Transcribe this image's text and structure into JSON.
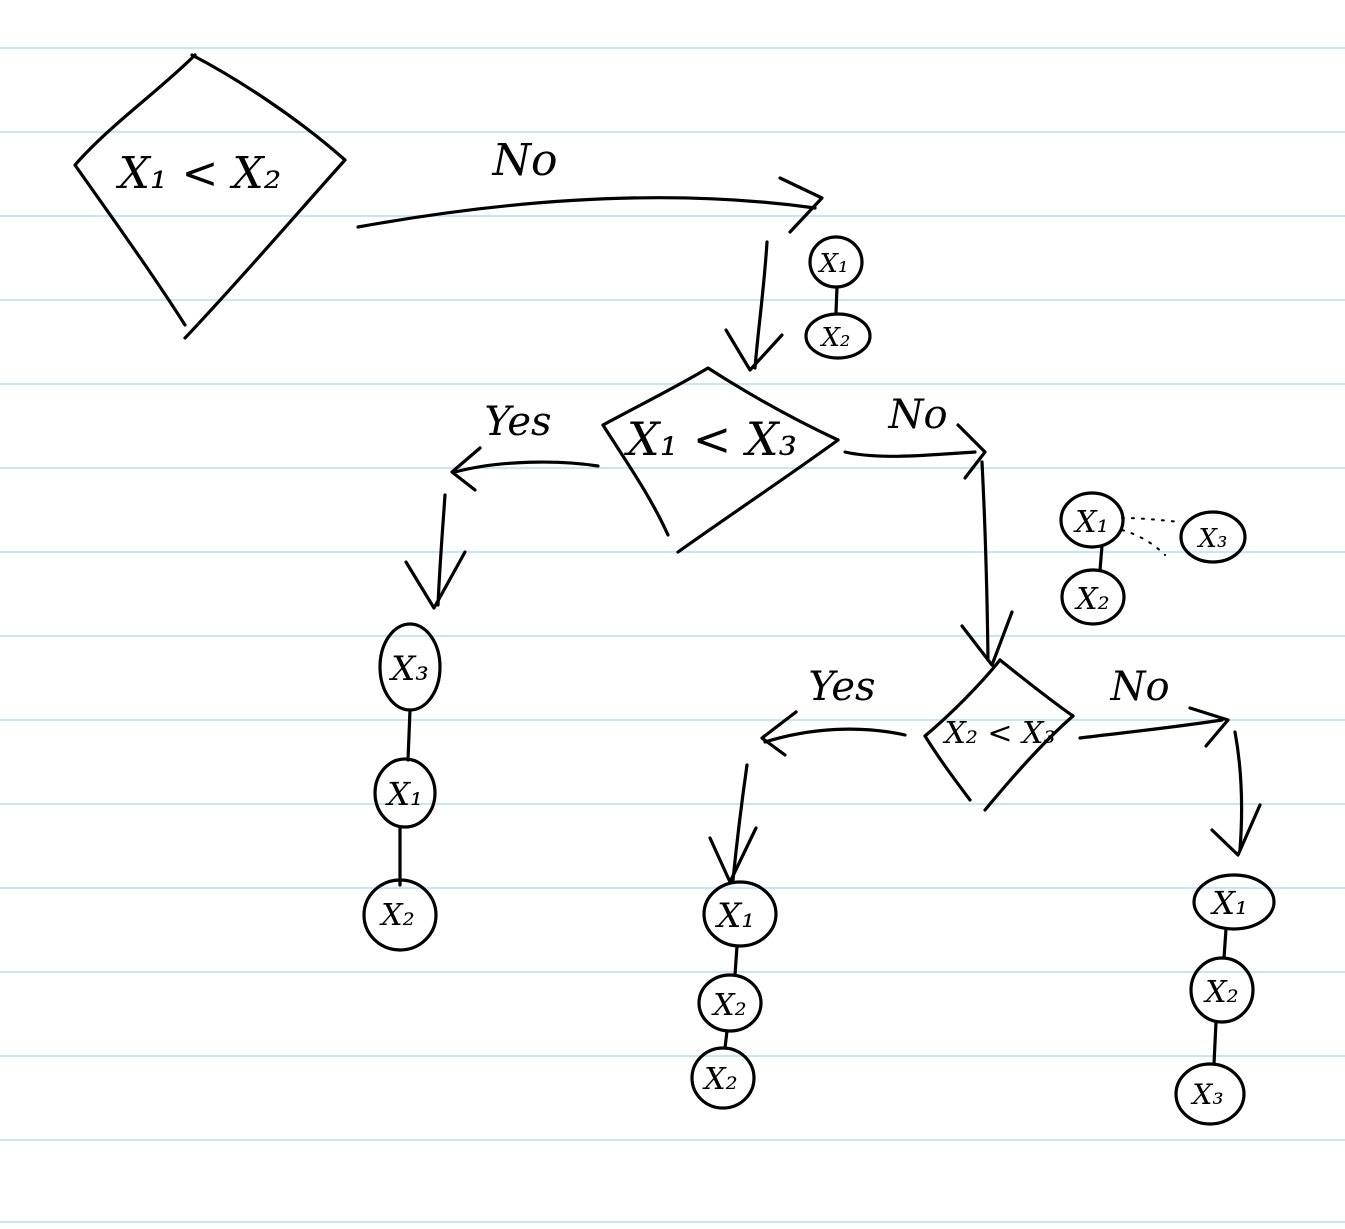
{
  "decisions": {
    "d1": {
      "label": "X₁ < X₂"
    },
    "d2": {
      "label": "X₁ < X₃"
    },
    "d3": {
      "label": "X₂ < X₃"
    }
  },
  "edges": {
    "d1_no": "No",
    "d2_yes": "Yes",
    "d2_no": "No",
    "d3_yes": "Yes",
    "d3_no": "No"
  },
  "nodes": {
    "top_pair": [
      "X₁",
      "X₂"
    ],
    "d2_no_group": [
      "X₁",
      "X₂",
      "X₃"
    ],
    "d2_yes_stack": [
      "X₃",
      "X₁",
      "X₂"
    ],
    "d3_yes_stack": [
      "X₁",
      "X₂",
      "X₂"
    ],
    "d3_no_stack": [
      "X₁",
      "X₂",
      "X₃"
    ]
  }
}
